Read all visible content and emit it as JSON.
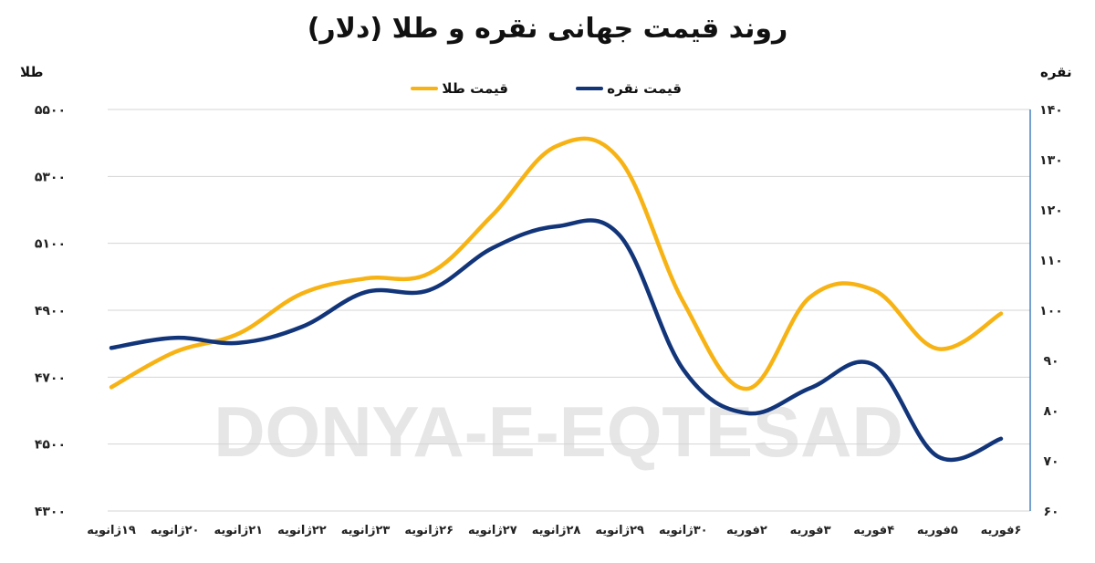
{
  "header": {
    "title": "روند قیمت جهانی نقره و طلا (دلار)",
    "left_axis_title": "طلا",
    "right_axis_title": "نقره"
  },
  "legend": {
    "silver_label": "قیمت نقره",
    "gold_label": "قیمت طلا"
  },
  "watermark": "DONYA-E-EQTESAD",
  "colors": {
    "gold": "#F7B314",
    "silver": "#12357A",
    "grid": "#d4d4d4",
    "right_axis_line": "#2a6db5"
  },
  "chart_data": {
    "type": "line",
    "title": "روند قیمت جهانی نقره و طلا (دلار)",
    "xlabel": "",
    "ylabel_left": "طلا",
    "ylabel_right": "نقره",
    "categories": [
      "۱۹ژانویه",
      "۲۰ژانویه",
      "۲۱ژانویه",
      "۲۲ژانویه",
      "۲۳ژانویه",
      "۲۶ژانویه",
      "۲۷ژانویه",
      "۲۸ژانویه",
      "۲۹ژانویه",
      "۳۰ژانویه",
      "۲فوریه",
      "۳فوریه",
      "۴فوریه",
      "۵فوریه",
      "۶فوریه"
    ],
    "series": [
      {
        "name": "قیمت طلا",
        "axis": "left",
        "values": [
          4670,
          4775,
          4830,
          4950,
          4995,
          5010,
          5185,
          5390,
          5350,
          4925,
          4665,
          4940,
          4960,
          4785,
          4890
        ]
      },
      {
        "name": "قیمت نقره",
        "axis": "right",
        "values": [
          92.5,
          94.5,
          93.5,
          96.7,
          103.6,
          104,
          112.4,
          116.7,
          114.9,
          88.2,
          79.5,
          84.5,
          89.1,
          70.9,
          74.4
        ]
      }
    ],
    "y_left": {
      "ylim": [
        4300,
        5500
      ],
      "ticks": [
        5500,
        5300,
        5100,
        4900,
        4700,
        4500,
        4300
      ],
      "tick_labels": [
        "۵۵۰۰",
        "۵۳۰۰",
        "۵۱۰۰",
        "۴۹۰۰",
        "۴۷۰۰",
        "۴۵۰۰",
        "۴۳۰۰"
      ]
    },
    "y_right": {
      "ylim": [
        60,
        140
      ],
      "ticks": [
        140,
        130,
        120,
        110,
        100,
        90,
        80,
        70,
        60
      ],
      "tick_labels": [
        "۱۴۰",
        "۱۳۰",
        "۱۲۰",
        "۱۱۰",
        "۱۰۰",
        "۹۰",
        "۸۰",
        "۷۰",
        "۶۰"
      ]
    },
    "grid": true,
    "legend_position": "top"
  }
}
